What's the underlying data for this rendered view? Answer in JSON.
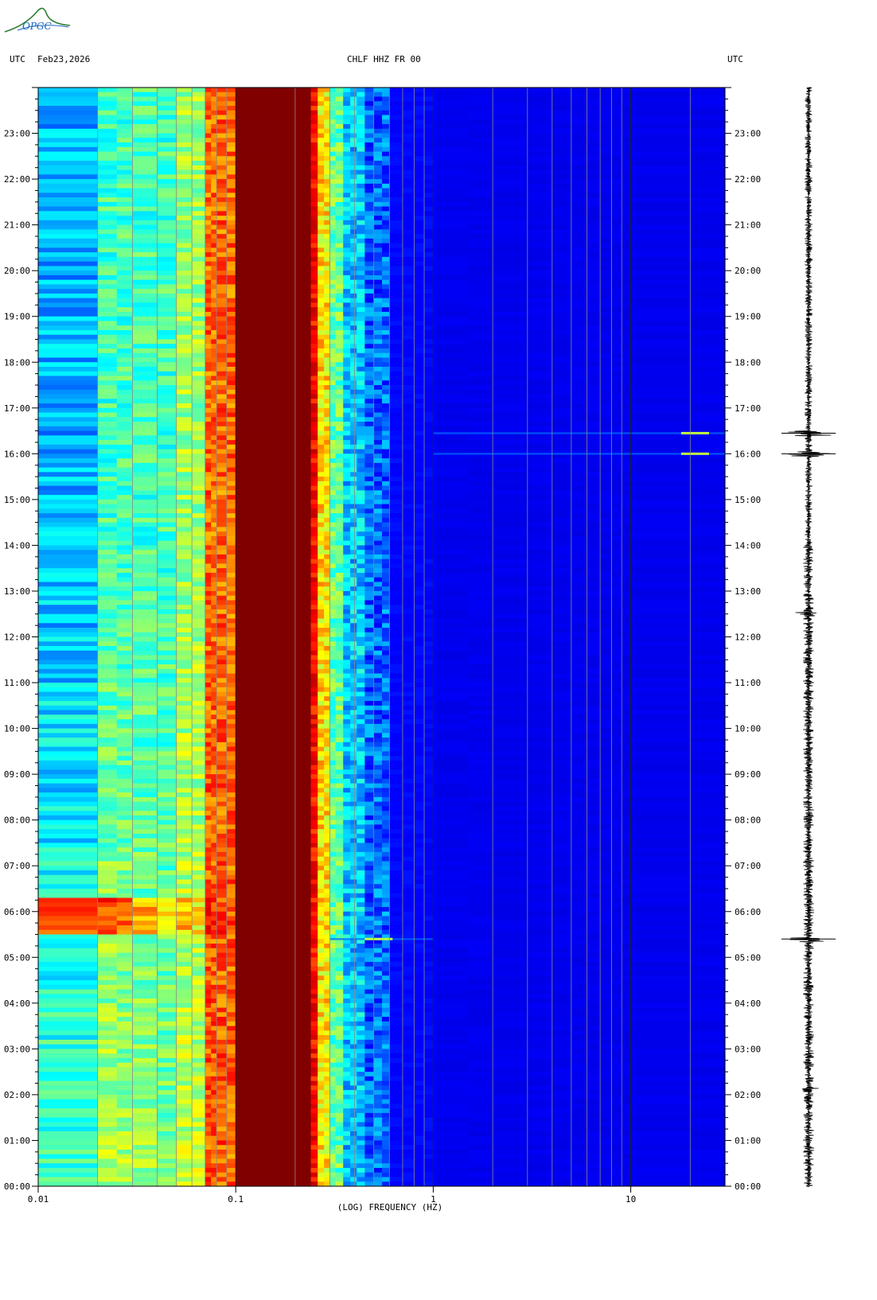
{
  "logo": {
    "text": "OPGC",
    "color": "#2e7d32",
    "text_color": "#1565c0"
  },
  "header": {
    "left_tz": "UTC",
    "date": "Feb23,2026",
    "station": "CHLF HHZ FR 00",
    "right_tz": "UTC"
  },
  "chart_data": {
    "type": "heatmap",
    "subtype": "spectrogram",
    "title": "CHLF HHZ FR 00",
    "xlabel": "(LOG) FREQUENCY (HZ)",
    "x_scale": "log",
    "xlim": [
      0.01,
      30
    ],
    "x_ticks": [
      {
        "value": 0.01,
        "label": "0.01"
      },
      {
        "value": 0.1,
        "label": "0.1"
      },
      {
        "value": 1,
        "label": "1"
      },
      {
        "value": 10,
        "label": "10"
      }
    ],
    "ylabel": "UTC",
    "ylim_hours": [
      0,
      24
    ],
    "y_ticks": [
      "00:00",
      "01:00",
      "02:00",
      "03:00",
      "04:00",
      "05:00",
      "06:00",
      "07:00",
      "08:00",
      "09:00",
      "10:00",
      "11:00",
      "12:00",
      "13:00",
      "14:00",
      "15:00",
      "16:00",
      "17:00",
      "18:00",
      "19:00",
      "20:00",
      "21:00",
      "22:00",
      "23:00"
    ],
    "colormap": [
      "#00008c",
      "#0000ff",
      "#00ffff",
      "#ffff00",
      "#ff0000",
      "#800000"
    ],
    "dominant_band_hz": [
      0.1,
      0.2
    ],
    "events_hours": [
      5.4,
      16.0,
      16.45
    ],
    "seismogram_trace": true
  }
}
